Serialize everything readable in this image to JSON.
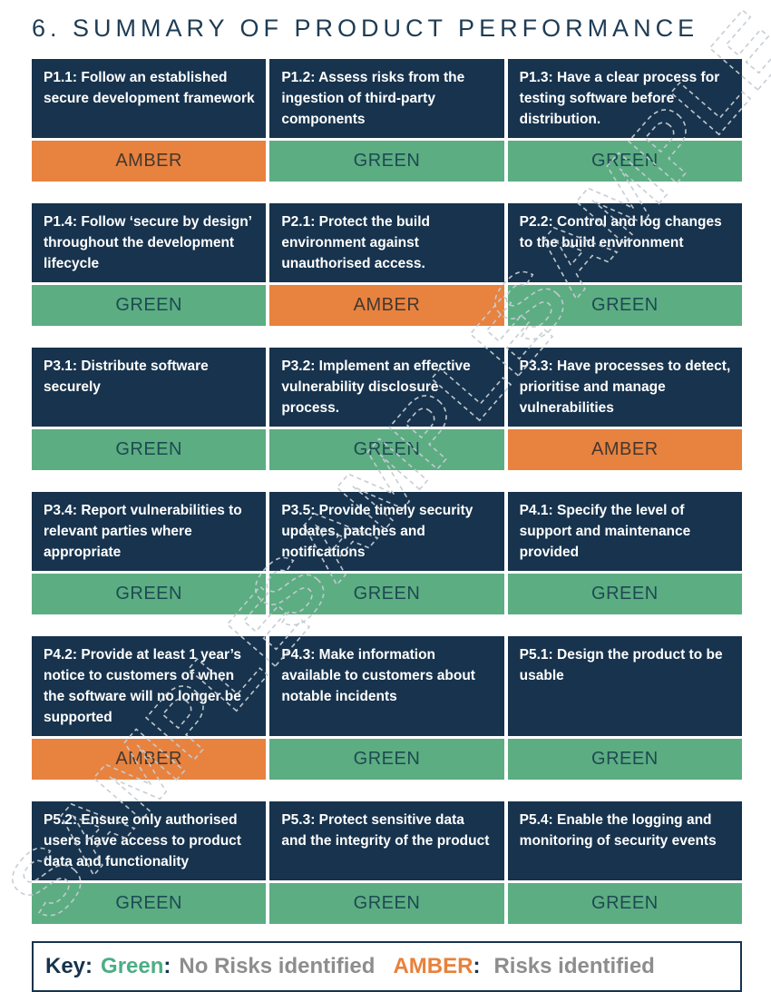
{
  "title": "6. SUMMARY OF PRODUCT PERFORMANCE",
  "watermark": {
    "text": "SAMPLE"
  },
  "colors": {
    "header_navy": "#17334d",
    "amber_bar": "#e8823f",
    "green_bar": "#5cad82",
    "key_green": "#4cae84",
    "key_amber": "#e8813a",
    "key_gray": "#8d8d8d",
    "title_navy": "#1d3c55"
  },
  "cards": [
    {
      "label": "P1.1: Follow an established secure development framework",
      "status": "AMBER"
    },
    {
      "label": "P1.2: Assess risks from the ingestion of third-party components",
      "status": "GREEN"
    },
    {
      "label": "P1.3: Have a clear process for testing software before distribution.",
      "status": "GREEN"
    },
    {
      "label": "P1.4: Follow ‘secure by design’ throughout the development lifecycle",
      "status": "GREEN"
    },
    {
      "label": "P2.1: Protect the build environment against unauthorised access.",
      "status": "AMBER"
    },
    {
      "label": "P2.2: Control and log changes to the build environment",
      "status": "GREEN"
    },
    {
      "label": "P3.1: Distribute software securely",
      "status": "GREEN"
    },
    {
      "label": "P3.2: Implement an effective vulnerability disclosure process.",
      "status": "GREEN"
    },
    {
      "label": "P3.3: Have processes to detect, prioritise and manage vulnerabilities",
      "status": "AMBER"
    },
    {
      "label": "P3.4: Report vulnerabilities to relevant parties where appropriate",
      "status": "GREEN"
    },
    {
      "label": "P3.5: Provide timely security updates, patches and notifications",
      "status": "GREEN"
    },
    {
      "label": "P4.1: Specify the level of support and maintenance provided",
      "status": "GREEN"
    },
    {
      "label": "P4.2: Provide at least 1 year’s notice to customers of when the software will no longer be supported",
      "status": "AMBER"
    },
    {
      "label": "P4.3: Make information available to customers about notable incidents",
      "status": "GREEN"
    },
    {
      "label": "P5.1: Design the product to be usable",
      "status": "GREEN"
    },
    {
      "label": "P5.2: Ensure only authorised users have access to product data and functionality",
      "status": "GREEN"
    },
    {
      "label": "P5.3: Protect sensitive data and the integrity of the product",
      "status": "GREEN"
    },
    {
      "label": "P5.4: Enable the logging and monitoring of security events",
      "status": "GREEN"
    }
  ],
  "key": {
    "label": "Key:",
    "green_name": "Green",
    "green_colon": ":",
    "green_desc": "No Risks identified",
    "amber_name": "AMBER",
    "amber_colon": ":",
    "amber_desc": "Risks identified"
  }
}
